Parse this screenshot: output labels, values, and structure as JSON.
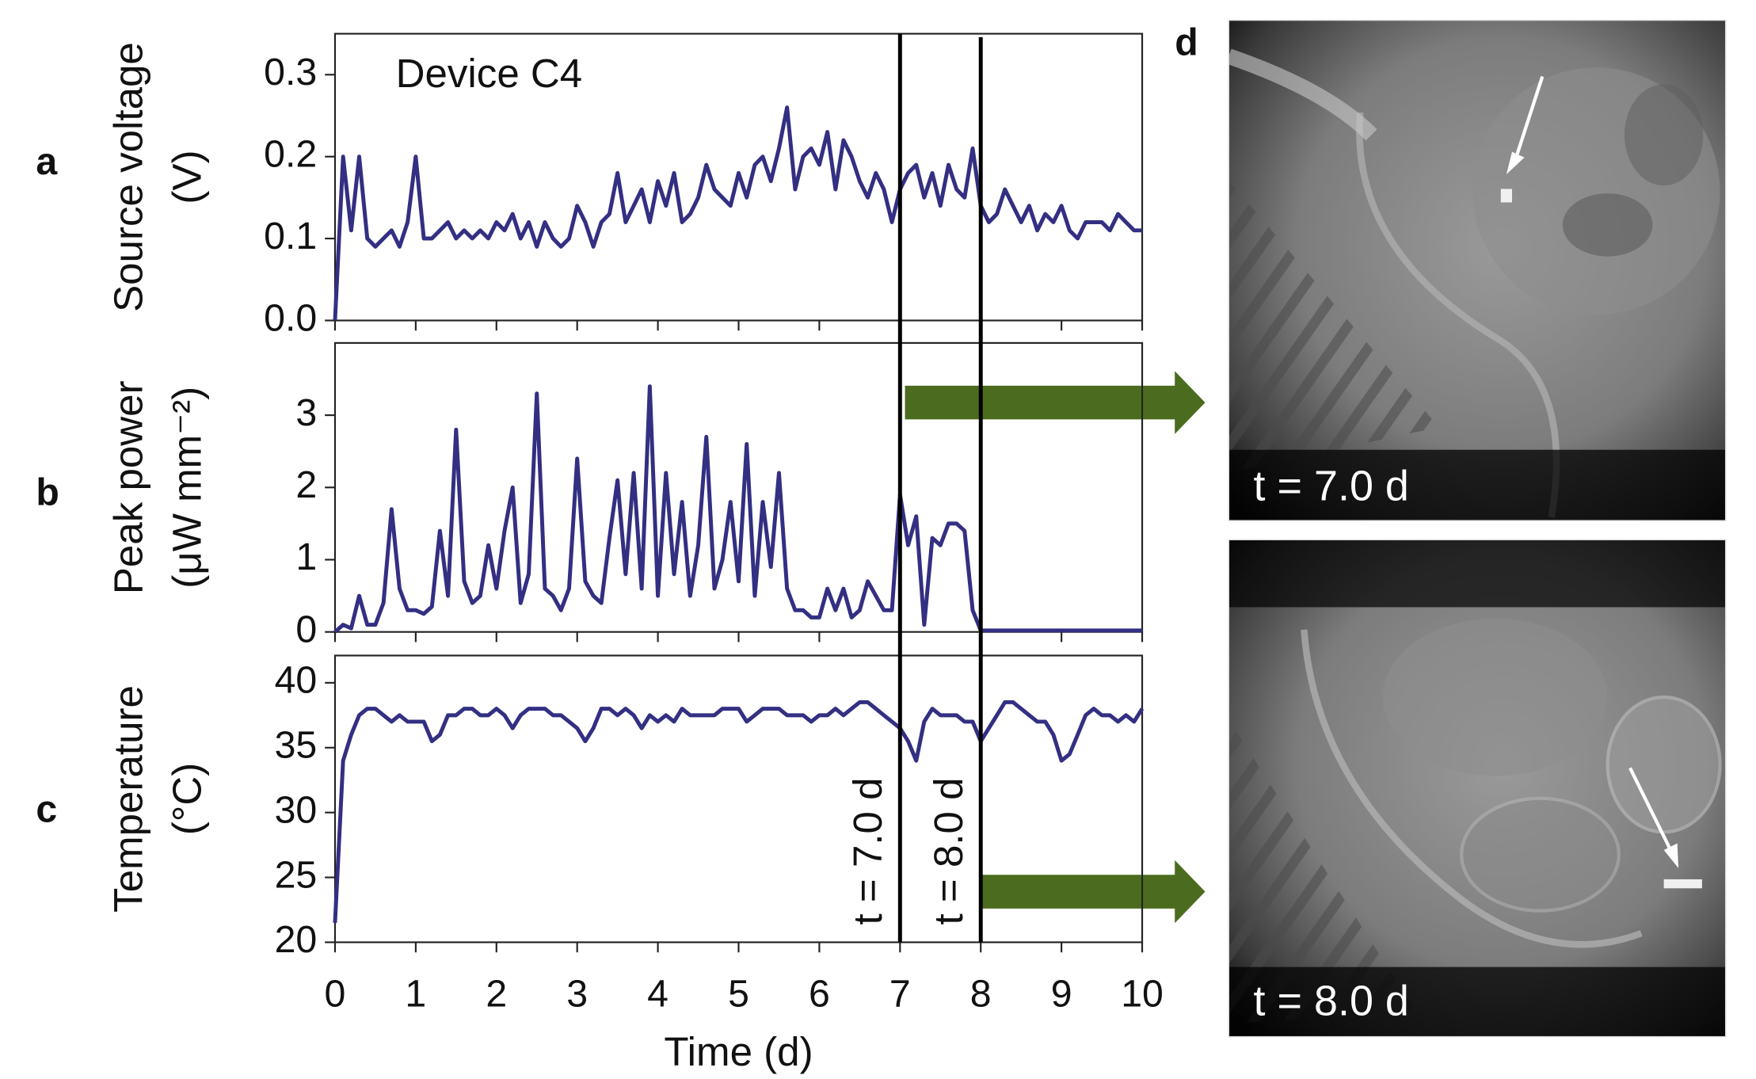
{
  "chart_data": [
    {
      "type": "line",
      "ylabel": [
        "Source voltage",
        "(V)"
      ],
      "annotation": "Device C4",
      "x": [
        0,
        0.1,
        0.2,
        0.3,
        0.4,
        0.5,
        0.6,
        0.7,
        0.8,
        0.9,
        1,
        1.1,
        1.2,
        1.3,
        1.4,
        1.5,
        1.6,
        1.7,
        1.8,
        1.9,
        2,
        2.1,
        2.2,
        2.3,
        2.4,
        2.5,
        2.6,
        2.7,
        2.8,
        2.9,
        3,
        3.1,
        3.2,
        3.3,
        3.4,
        3.5,
        3.6,
        3.7,
        3.8,
        3.9,
        4,
        4.1,
        4.2,
        4.3,
        4.4,
        4.5,
        4.6,
        4.7,
        4.8,
        4.9,
        5,
        5.1,
        5.2,
        5.3,
        5.4,
        5.5,
        5.6,
        5.7,
        5.8,
        5.9,
        6,
        6.1,
        6.2,
        6.3,
        6.4,
        6.5,
        6.6,
        6.7,
        6.8,
        6.9,
        7,
        7.1,
        7.2,
        7.3,
        7.4,
        7.5,
        7.6,
        7.7,
        7.8,
        7.9,
        8,
        8.1,
        8.2,
        8.3,
        8.4,
        8.5,
        8.6,
        8.7,
        8.8,
        8.9,
        9,
        9.1,
        9.2,
        9.3,
        9.4,
        9.5,
        9.6,
        9.7,
        9.8,
        9.9,
        10
      ],
      "values": [
        0,
        0.2,
        0.11,
        0.2,
        0.1,
        0.09,
        0.1,
        0.11,
        0.09,
        0.12,
        0.2,
        0.1,
        0.1,
        0.11,
        0.12,
        0.1,
        0.11,
        0.1,
        0.11,
        0.1,
        0.12,
        0.11,
        0.13,
        0.1,
        0.12,
        0.09,
        0.12,
        0.1,
        0.09,
        0.1,
        0.14,
        0.12,
        0.09,
        0.12,
        0.13,
        0.18,
        0.12,
        0.14,
        0.16,
        0.12,
        0.17,
        0.14,
        0.18,
        0.12,
        0.13,
        0.15,
        0.19,
        0.16,
        0.15,
        0.14,
        0.18,
        0.15,
        0.19,
        0.2,
        0.17,
        0.21,
        0.26,
        0.16,
        0.2,
        0.21,
        0.19,
        0.23,
        0.16,
        0.22,
        0.2,
        0.17,
        0.15,
        0.18,
        0.16,
        0.12,
        0.16,
        0.18,
        0.19,
        0.15,
        0.18,
        0.14,
        0.19,
        0.16,
        0.15,
        0.21,
        0.14,
        0.12,
        0.13,
        0.16,
        0.14,
        0.12,
        0.14,
        0.11,
        0.13,
        0.12,
        0.14,
        0.11,
        0.1,
        0.12,
        0.12,
        0.12,
        0.11,
        0.13,
        0.12,
        0.11,
        0.11
      ],
      "color": "#332f82",
      "xlim": [
        0,
        10
      ],
      "xticks": [
        0,
        1,
        2,
        3,
        4,
        5,
        6,
        7,
        8,
        9,
        10
      ],
      "xtick_labels": false,
      "ylim": [
        0,
        0.35
      ],
      "yticks": [
        {
          "value": 0,
          "label": "0.0"
        },
        0.1,
        0.2,
        0.3
      ]
    },
    {
      "type": "line",
      "ylabel": [
        "Peak power",
        "(μW mm⁻²)"
      ],
      "x": [
        0,
        0.1,
        0.2,
        0.3,
        0.4,
        0.5,
        0.6,
        0.7,
        0.8,
        0.9,
        1,
        1.1,
        1.2,
        1.3,
        1.4,
        1.5,
        1.6,
        1.7,
        1.8,
        1.9,
        2,
        2.1,
        2.2,
        2.3,
        2.4,
        2.5,
        2.6,
        2.7,
        2.8,
        2.9,
        3,
        3.1,
        3.2,
        3.3,
        3.4,
        3.5,
        3.6,
        3.7,
        3.8,
        3.9,
        4,
        4.1,
        4.2,
        4.3,
        4.4,
        4.5,
        4.6,
        4.7,
        4.8,
        4.9,
        5,
        5.1,
        5.2,
        5.3,
        5.4,
        5.5,
        5.6,
        5.7,
        5.8,
        5.9,
        6,
        6.1,
        6.2,
        6.3,
        6.4,
        6.5,
        6.6,
        6.7,
        6.8,
        6.9,
        7,
        7.1,
        7.2,
        7.3,
        7.4,
        7.5,
        7.6,
        7.7,
        7.8,
        7.9,
        8,
        8.1,
        8.2,
        8.3,
        8.4,
        8.5,
        8.6,
        8.7,
        8.8,
        8.9,
        9,
        9.1,
        9.2,
        9.3,
        9.4,
        9.5,
        9.6,
        9.7,
        9.8,
        9.9,
        10
      ],
      "values": [
        0,
        0.1,
        0.05,
        0.5,
        0.1,
        0.1,
        0.4,
        1.7,
        0.6,
        0.3,
        0.3,
        0.25,
        0.35,
        1.4,
        0.5,
        2.8,
        0.7,
        0.4,
        0.5,
        1.2,
        0.6,
        1.4,
        2.0,
        0.4,
        0.8,
        3.3,
        0.6,
        0.5,
        0.3,
        0.6,
        2.4,
        0.7,
        0.5,
        0.4,
        1.3,
        2.1,
        0.8,
        2.2,
        0.6,
        3.4,
        0.5,
        2.2,
        0.8,
        1.8,
        0.5,
        1.2,
        2.7,
        0.6,
        1.0,
        1.8,
        0.7,
        2.6,
        0.5,
        1.8,
        0.9,
        2.2,
        0.6,
        0.3,
        0.3,
        0.2,
        0.2,
        0.6,
        0.3,
        0.6,
        0.2,
        0.3,
        0.7,
        0.5,
        0.3,
        0.3,
        1.9,
        1.2,
        1.6,
        0.1,
        1.3,
        1.2,
        1.5,
        1.5,
        1.4,
        0.3,
        0.02,
        0.02,
        0.02,
        0.02,
        0.02,
        0.02,
        0.02,
        0.02,
        0.02,
        0.02,
        0.02,
        0.02,
        0.02,
        0.02,
        0.02,
        0.02,
        0.02,
        0.02,
        0.02,
        0.02,
        0.02
      ],
      "color": "#332f82",
      "xlim": [
        0,
        10
      ],
      "xticks": [
        0,
        1,
        2,
        3,
        4,
        5,
        6,
        7,
        8,
        9,
        10
      ],
      "xtick_labels": false,
      "ylim": [
        0,
        4
      ],
      "yticks": [
        0,
        1,
        2,
        3
      ]
    },
    {
      "type": "line",
      "ylabel": [
        "Temperature",
        "(°C)"
      ],
      "xlabel": "Time (d)",
      "x": [
        0,
        0.1,
        0.2,
        0.3,
        0.4,
        0.5,
        0.6,
        0.7,
        0.8,
        0.9,
        1,
        1.1,
        1.2,
        1.3,
        1.4,
        1.5,
        1.6,
        1.7,
        1.8,
        1.9,
        2,
        2.1,
        2.2,
        2.3,
        2.4,
        2.5,
        2.6,
        2.7,
        2.8,
        2.9,
        3,
        3.1,
        3.2,
        3.3,
        3.4,
        3.5,
        3.6,
        3.7,
        3.8,
        3.9,
        4,
        4.1,
        4.2,
        4.3,
        4.4,
        4.5,
        4.6,
        4.7,
        4.8,
        4.9,
        5,
        5.1,
        5.2,
        5.3,
        5.4,
        5.5,
        5.6,
        5.7,
        5.8,
        5.9,
        6,
        6.1,
        6.2,
        6.3,
        6.4,
        6.5,
        6.6,
        6.7,
        6.8,
        6.9,
        7,
        7.1,
        7.2,
        7.3,
        7.4,
        7.5,
        7.6,
        7.7,
        7.8,
        7.9,
        8,
        8.1,
        8.2,
        8.3,
        8.4,
        8.5,
        8.6,
        8.7,
        8.8,
        8.9,
        9,
        9.1,
        9.2,
        9.3,
        9.4,
        9.5,
        9.6,
        9.7,
        9.8,
        9.9,
        10
      ],
      "values": [
        21.5,
        34,
        36,
        37.5,
        38,
        38,
        37.5,
        37,
        37.5,
        37,
        37,
        37,
        35.5,
        36,
        37.5,
        37.5,
        38,
        38,
        37.5,
        37.5,
        38,
        37.5,
        36.5,
        37.5,
        38,
        38,
        38,
        37.5,
        37.5,
        37,
        36.5,
        35.5,
        36.5,
        38,
        38,
        37.5,
        38,
        37.5,
        36.5,
        37.5,
        37,
        37.5,
        37,
        38,
        37.5,
        37.5,
        37.5,
        37.5,
        38,
        38,
        38,
        37,
        37.5,
        38,
        38,
        38,
        37.5,
        37.5,
        37.5,
        37,
        37.5,
        37.5,
        38,
        37.5,
        38,
        38.5,
        38.5,
        38,
        37.5,
        37,
        36.5,
        35.5,
        34,
        37,
        38,
        37.5,
        37.5,
        37.5,
        37,
        37,
        35.5,
        36.5,
        37.5,
        38.5,
        38.5,
        38,
        37.5,
        37,
        37,
        36,
        34,
        34.5,
        36,
        37.5,
        38,
        37.5,
        37.5,
        37,
        37.5,
        37,
        38
      ],
      "color": "#332f82",
      "xlim": [
        0,
        10
      ],
      "xticks": [
        0,
        1,
        2,
        3,
        4,
        5,
        6,
        7,
        8,
        9,
        10
      ],
      "xtick_labels": true,
      "ylim": [
        20,
        42.1
      ],
      "yticks": [
        20,
        25,
        30,
        35,
        40
      ]
    }
  ],
  "time_markers": [
    {
      "value": 7,
      "label": "t = 7.0 d"
    },
    {
      "value": 8,
      "label": "t = 8.0 d"
    }
  ],
  "panel_labels": [
    "a",
    "b",
    "c",
    "d"
  ],
  "images": [
    {
      "label": "t = 7.0 d"
    },
    {
      "label": "t = 8.0 d"
    }
  ]
}
